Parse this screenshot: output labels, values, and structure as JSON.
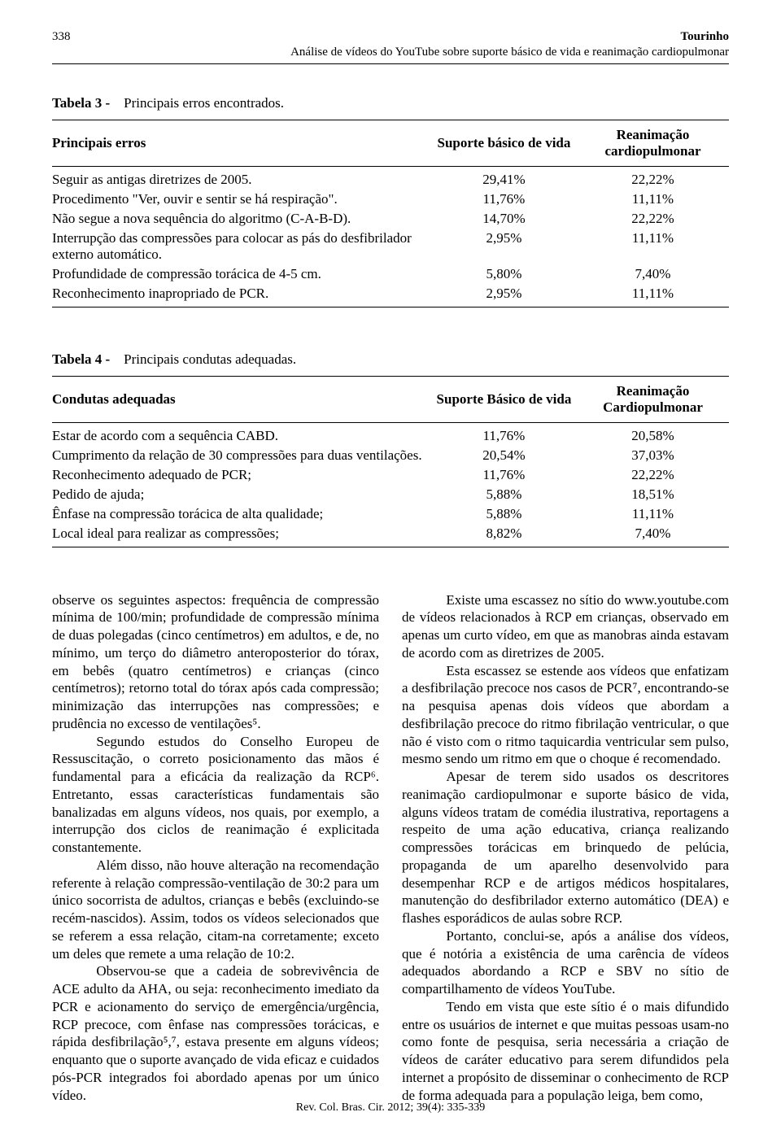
{
  "header": {
    "page_number": "338",
    "author": "Tourinho",
    "running_title": "Análise de vídeos do YouTube sobre suporte básico de vida e reanimação cardiopulmonar"
  },
  "table3": {
    "label": "Tabela 3 -",
    "caption": "Principais erros encontrados.",
    "columns": [
      "Principais erros",
      "Suporte básico de vida",
      "Reanimação cardiopulmonar"
    ],
    "rows": [
      [
        "Seguir as antigas diretrizes de 2005.",
        "29,41%",
        "22,22%"
      ],
      [
        "Procedimento \"Ver, ouvir e sentir se há respiração\".",
        "11,76%",
        "11,11%"
      ],
      [
        "Não segue a nova sequência do algoritmo (C-A-B-D).",
        "14,70%",
        "22,22%"
      ],
      [
        "Interrupção das compressões para colocar as pás do desfibrilador externo automático.",
        "2,95%",
        "11,11%"
      ],
      [
        "Profundidade de compressão torácica de 4-5 cm.",
        "5,80%",
        "7,40%"
      ],
      [
        "Reconhecimento inapropriado de PCR.",
        "2,95%",
        "11,11%"
      ]
    ]
  },
  "table4": {
    "label": "Tabela 4 -",
    "caption": "Principais condutas adequadas.",
    "columns": [
      "Condutas adequadas",
      "Suporte Básico de vida",
      "Reanimação Cardiopulmonar"
    ],
    "rows": [
      [
        "Estar de acordo com a sequência CABD.",
        "11,76%",
        "20,58%"
      ],
      [
        "Cumprimento da relação de 30 compressões para duas ventilações.",
        "20,54%",
        "37,03%"
      ],
      [
        "Reconhecimento adequado de PCR;",
        "11,76%",
        "22,22%"
      ],
      [
        "Pedido de ajuda;",
        "5,88%",
        "18,51%"
      ],
      [
        "Ênfase na compressão torácica de alta qualidade;",
        "5,88%",
        "11,11%"
      ],
      [
        "Local ideal para realizar as compressões;",
        "8,82%",
        "7,40%"
      ]
    ]
  },
  "body": {
    "left": [
      "observe os seguintes aspectos: frequência de compressão mínima de 100/min; profundidade de compressão mínima de duas polegadas (cinco centímetros) em adultos, e de, no mínimo, um terço do diâmetro anteroposterior do tórax, em bebês (quatro centímetros) e crianças (cinco centímetros); retorno total do tórax após cada compressão; minimização das interrupções nas compressões; e prudência no excesso de ventilações⁵.",
      "Segundo estudos do Conselho Europeu de Ressuscitação, o correto posicionamento das mãos é fundamental para a eficácia da realização da RCP⁶. Entretanto, essas características fundamentais são banalizadas em alguns vídeos, nos quais, por exemplo, a interrupção dos ciclos de reanimação é explicitada constantemente.",
      "Além disso, não houve alteração na recomendação referente à relação compressão-ventilação de 30:2 para um único socorrista de adultos, crianças e bebês (excluindo-se recém-nascidos). Assim, todos os vídeos selecionados que se referem a essa relação, citam-na corretamente; exceto um deles que remete a uma relação de 10:2.",
      "Observou-se que a cadeia de sobrevivência de ACE adulto da AHA, ou seja: reconhecimento imediato da PCR e acionamento do serviço de emergência/urgência, RCP precoce, com ênfase nas compressões torácicas, e rápida desfibrilação⁵,⁷, estava presente em alguns vídeos; enquanto que o suporte avançado de vida eficaz e cuidados pós-PCR integrados foi abordado apenas por um único vídeo."
    ],
    "right": [
      "Existe uma escassez no sítio do www.youtube.com de vídeos relacionados à RCP em crianças, observado em apenas um curto vídeo, em que as manobras ainda estavam de acordo com as diretrizes de 2005.",
      "Esta escassez se estende aos vídeos que enfatizam a desfibrilação precoce nos casos de PCR⁷, encontrando-se na pesquisa apenas dois vídeos que abordam a desfibrilação precoce do ritmo fibrilação ventricular, o que não é visto com o ritmo taquicardia ventricular sem pulso, mesmo sendo um ritmo em que o choque é recomendado.",
      "Apesar de terem sido usados os descritores reanimação cardiopulmonar e suporte básico de vida, alguns vídeos tratam de comédia ilustrativa, reportagens a respeito de uma ação educativa, criança realizando compressões torácicas em brinquedo de pelúcia, propaganda de um aparelho desenvolvido para desempenhar RCP e de artigos médicos hospitalares, manutenção do desfibrilador externo automático (DEA) e flashes esporádicos de aulas sobre RCP.",
      "Portanto, conclui-se, após a análise dos vídeos, que é notória a existência de uma carência de vídeos adequados abordando a RCP e SBV no sítio de compartilhamento de vídeos YouTube.",
      "Tendo em vista que este sítio é o mais difundido entre os usuários de internet e que muitas pessoas usam-no como fonte de pesquisa, seria necessária a criação de vídeos de caráter educativo para serem difundidos pela internet a propósito de disseminar o conhecimento de RCP de forma adequada para a população leiga, bem como,"
    ]
  },
  "footer": "Rev. Col. Bras. Cir. 2012; 39(4): 335-339"
}
